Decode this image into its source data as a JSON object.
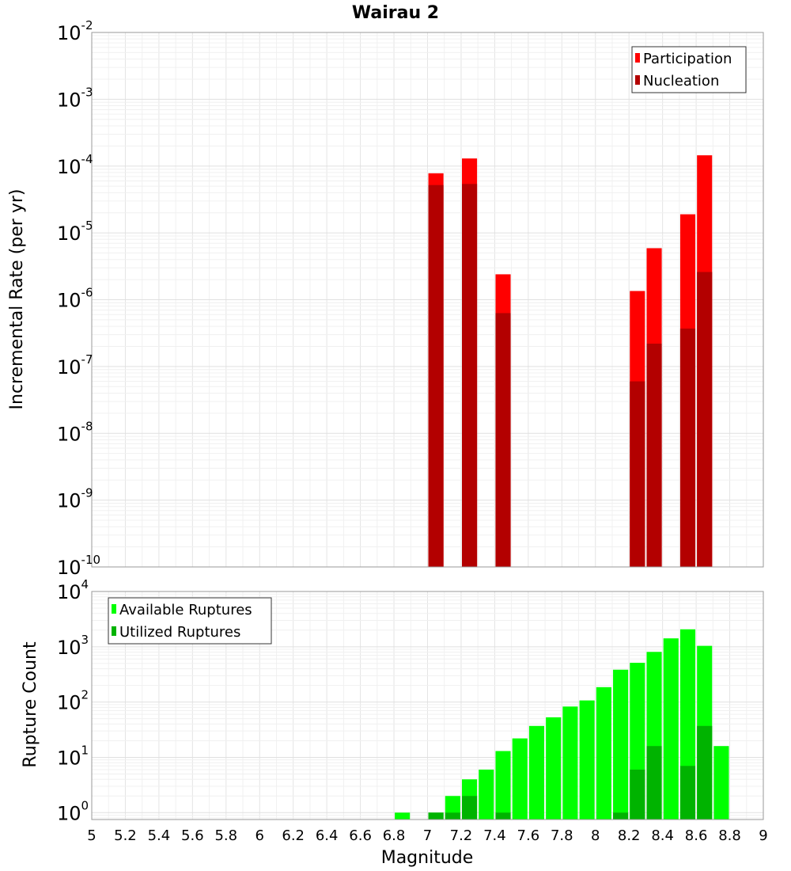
{
  "chart_data": [
    {
      "type": "bar",
      "title": "Wairau 2",
      "ylabel": "Incremental Rate (per yr)",
      "xlabel": "",
      "xlim": [
        5,
        9
      ],
      "ylim": [
        1e-10,
        0.01
      ],
      "y_scale": "log",
      "grid": true,
      "legend_position": "top-right",
      "bar_width": 0.09,
      "series": [
        {
          "name": "Participation",
          "color": "#ff0000",
          "x": [
            7.05,
            7.25,
            7.45,
            8.25,
            8.35,
            8.55,
            8.65
          ],
          "values": [
            7.8e-05,
            0.00013,
            2.4e-06,
            1.35e-06,
            5.9e-06,
            1.9e-05,
            0.000145
          ]
        },
        {
          "name": "Nucleation",
          "color": "#b30000",
          "x": [
            7.05,
            7.25,
            7.45,
            8.25,
            8.35,
            8.55,
            8.65
          ],
          "values": [
            5.2e-05,
            5.4e-05,
            6.3e-07,
            6e-08,
            2.2e-07,
            3.7e-07,
            2.6e-06
          ]
        }
      ],
      "y_ticks": [
        {
          "base": "10",
          "exp": "-10"
        },
        {
          "base": "10",
          "exp": "-9"
        },
        {
          "base": "10",
          "exp": "-8"
        },
        {
          "base": "10",
          "exp": "-7"
        },
        {
          "base": "10",
          "exp": "-6"
        },
        {
          "base": "10",
          "exp": "-5"
        },
        {
          "base": "10",
          "exp": "-4"
        },
        {
          "base": "10",
          "exp": "-3"
        },
        {
          "base": "10",
          "exp": "-2"
        }
      ]
    },
    {
      "type": "bar",
      "title": "",
      "ylabel": "Rupture Count",
      "xlabel": "Magnitude",
      "xlim": [
        5,
        9
      ],
      "ylim": [
        0.75,
        10000.0
      ],
      "y_scale": "log",
      "grid": true,
      "legend_position": "top-left",
      "bar_width": 0.09,
      "series": [
        {
          "name": "Available Ruptures",
          "color": "#00ff00",
          "x": [
            6.85,
            7.05,
            7.15,
            7.25,
            7.35,
            7.45,
            7.55,
            7.65,
            7.75,
            7.85,
            7.95,
            8.05,
            8.15,
            8.25,
            8.35,
            8.45,
            8.55,
            8.65,
            8.75
          ],
          "values": [
            1,
            1,
            2,
            4,
            6,
            13,
            22,
            37,
            53,
            83,
            107,
            186,
            385,
            513,
            808,
            1420,
            2070,
            1040,
            16
          ]
        },
        {
          "name": "Utilized Ruptures",
          "color": "#00b300",
          "x": [
            7.05,
            7.15,
            7.25,
            7.45,
            8.15,
            8.25,
            8.35,
            8.55,
            8.65
          ],
          "values": [
            1,
            1,
            2,
            1,
            1,
            6,
            16,
            7,
            37
          ]
        }
      ],
      "y_ticks": [
        {
          "base": "10",
          "exp": "0"
        },
        {
          "base": "10",
          "exp": "1"
        },
        {
          "base": "10",
          "exp": "2"
        },
        {
          "base": "10",
          "exp": "3"
        },
        {
          "base": "10",
          "exp": "4"
        }
      ],
      "x_ticks": [
        "5",
        "5.2",
        "5.4",
        "5.6",
        "5.8",
        "6",
        "6.2",
        "6.4",
        "6.6",
        "6.8",
        "7",
        "7.2",
        "7.4",
        "7.6",
        "7.8",
        "8",
        "8.2",
        "8.4",
        "8.6",
        "8.8",
        "9"
      ]
    }
  ]
}
